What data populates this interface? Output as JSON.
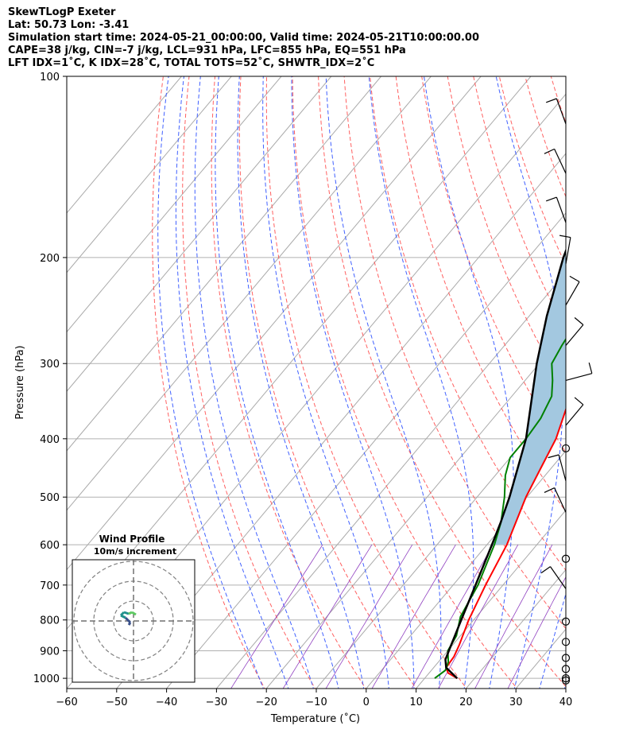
{
  "header": {
    "line1": "SkewTLogP Exeter",
    "line2": "Lat: 50.73   Lon: -3.41",
    "line3": "Simulation start time: 2024-05-21_00:00:00, Valid time: 2024-05-21T10:00:00.00",
    "line4": "CAPE=38 j/kg, CIN=-7 j/kg, LCL=931 hPa, LFC=855 hPa, EQ=551 hPa",
    "line5": "LFT IDX=1˚C, K IDX=28˚C, TOTAL TOTS=52˚C, SHWTR_IDX=2˚C"
  },
  "colors": {
    "temperature": "#ff0000",
    "dewpoint": "#008000",
    "parcel": "#000000",
    "cape_fill": "#a3c8e0",
    "dry_adiabat": "#ff6060",
    "moist_adiabat": "#4060ff",
    "mixing_ratio": "#9040c0",
    "isotherm": "#aaaaaa"
  },
  "chart_data": {
    "type": "skewt",
    "xlabel": "Temperature (˚C)",
    "ylabel": "Pressure (hPa)",
    "x_ticks": [
      "−60",
      "−50",
      "−40",
      "−30",
      "−20",
      "−10",
      "0",
      "10",
      "20",
      "30",
      "40"
    ],
    "x_tick_values": [
      -60,
      -50,
      -40,
      -30,
      -20,
      -10,
      0,
      10,
      20,
      30,
      40
    ],
    "y_ticks": [
      "100",
      "200",
      "300",
      "400",
      "500",
      "600",
      "700",
      "800",
      "900",
      "1000"
    ],
    "y_tick_values": [
      100,
      200,
      300,
      400,
      500,
      600,
      700,
      800,
      900,
      1000
    ],
    "xlim": [
      -60,
      40
    ],
    "ylim": [
      1040,
      100
    ],
    "y_scale": "log",
    "grid": true,
    "series": [
      {
        "key": "temperature",
        "points": [
          [
            1000,
            16.5
          ],
          [
            980,
            13.8
          ],
          [
            960,
            12.5
          ],
          [
            920,
            12.2
          ],
          [
            880,
            11.3
          ],
          [
            800,
            9.0
          ],
          [
            700,
            6.5
          ],
          [
            600,
            4.0
          ],
          [
            500,
            -0.2
          ],
          [
            450,
            -2.0
          ],
          [
            400,
            -4.0
          ],
          [
            350,
            -7.5
          ],
          [
            320,
            -10.5
          ],
          [
            290,
            -14.2
          ],
          [
            260,
            -13.5
          ],
          [
            235,
            -12.0
          ],
          [
            210,
            -7.5
          ],
          [
            190,
            -3.0
          ],
          [
            160,
            1.0
          ],
          [
            140,
            3.0
          ],
          [
            120,
            6.0
          ],
          [
            100,
            9.5
          ]
        ]
      },
      {
        "key": "dewpoint",
        "points": [
          [
            1000,
            12.0
          ],
          [
            970,
            12.8
          ],
          [
            940,
            12.0
          ],
          [
            900,
            10.0
          ],
          [
            850,
            9.2
          ],
          [
            790,
            6.8
          ],
          [
            700,
            5.0
          ],
          [
            600,
            1.5
          ],
          [
            550,
            -1.0
          ],
          [
            500,
            -4.5
          ],
          [
            460,
            -8.0
          ],
          [
            430,
            -10.0
          ],
          [
            400,
            -10.0
          ],
          [
            370,
            -10.5
          ],
          [
            340,
            -12.0
          ],
          [
            320,
            -14.5
          ],
          [
            300,
            -17.5
          ],
          [
            280,
            -18.5
          ],
          [
            255,
            -19.5
          ],
          [
            230,
            -21.5
          ],
          [
            210,
            -23.0
          ],
          [
            200,
            -23.5
          ],
          [
            190,
            -25.0
          ],
          [
            180,
            -22.0
          ],
          [
            160,
            -16.0
          ],
          [
            130,
            -6.0
          ],
          [
            110,
            1.0
          ],
          [
            100,
            3.5
          ]
        ]
      },
      {
        "key": "parcel",
        "points": [
          [
            1000,
            16.5
          ],
          [
            960,
            12.5
          ],
          [
            931,
            11.0
          ],
          [
            900,
            10.2
          ],
          [
            800,
            7.5
          ],
          [
            700,
            4.5
          ],
          [
            600,
            1.0
          ],
          [
            551,
            -1.0
          ],
          [
            500,
            -3.5
          ],
          [
            400,
            -10.0
          ],
          [
            300,
            -20.5
          ],
          [
            250,
            -26.5
          ],
          [
            200,
            -33.0
          ],
          [
            150,
            -40.0
          ],
          [
            100,
            -42.5
          ]
        ]
      }
    ],
    "wind_barb_pressures": [
      120,
      145,
      175,
      205,
      240,
      280,
      320,
      380,
      470,
      530,
      710
    ]
  },
  "inset": {
    "title": "Wind Profile",
    "subtitle": "10m/s increment"
  }
}
